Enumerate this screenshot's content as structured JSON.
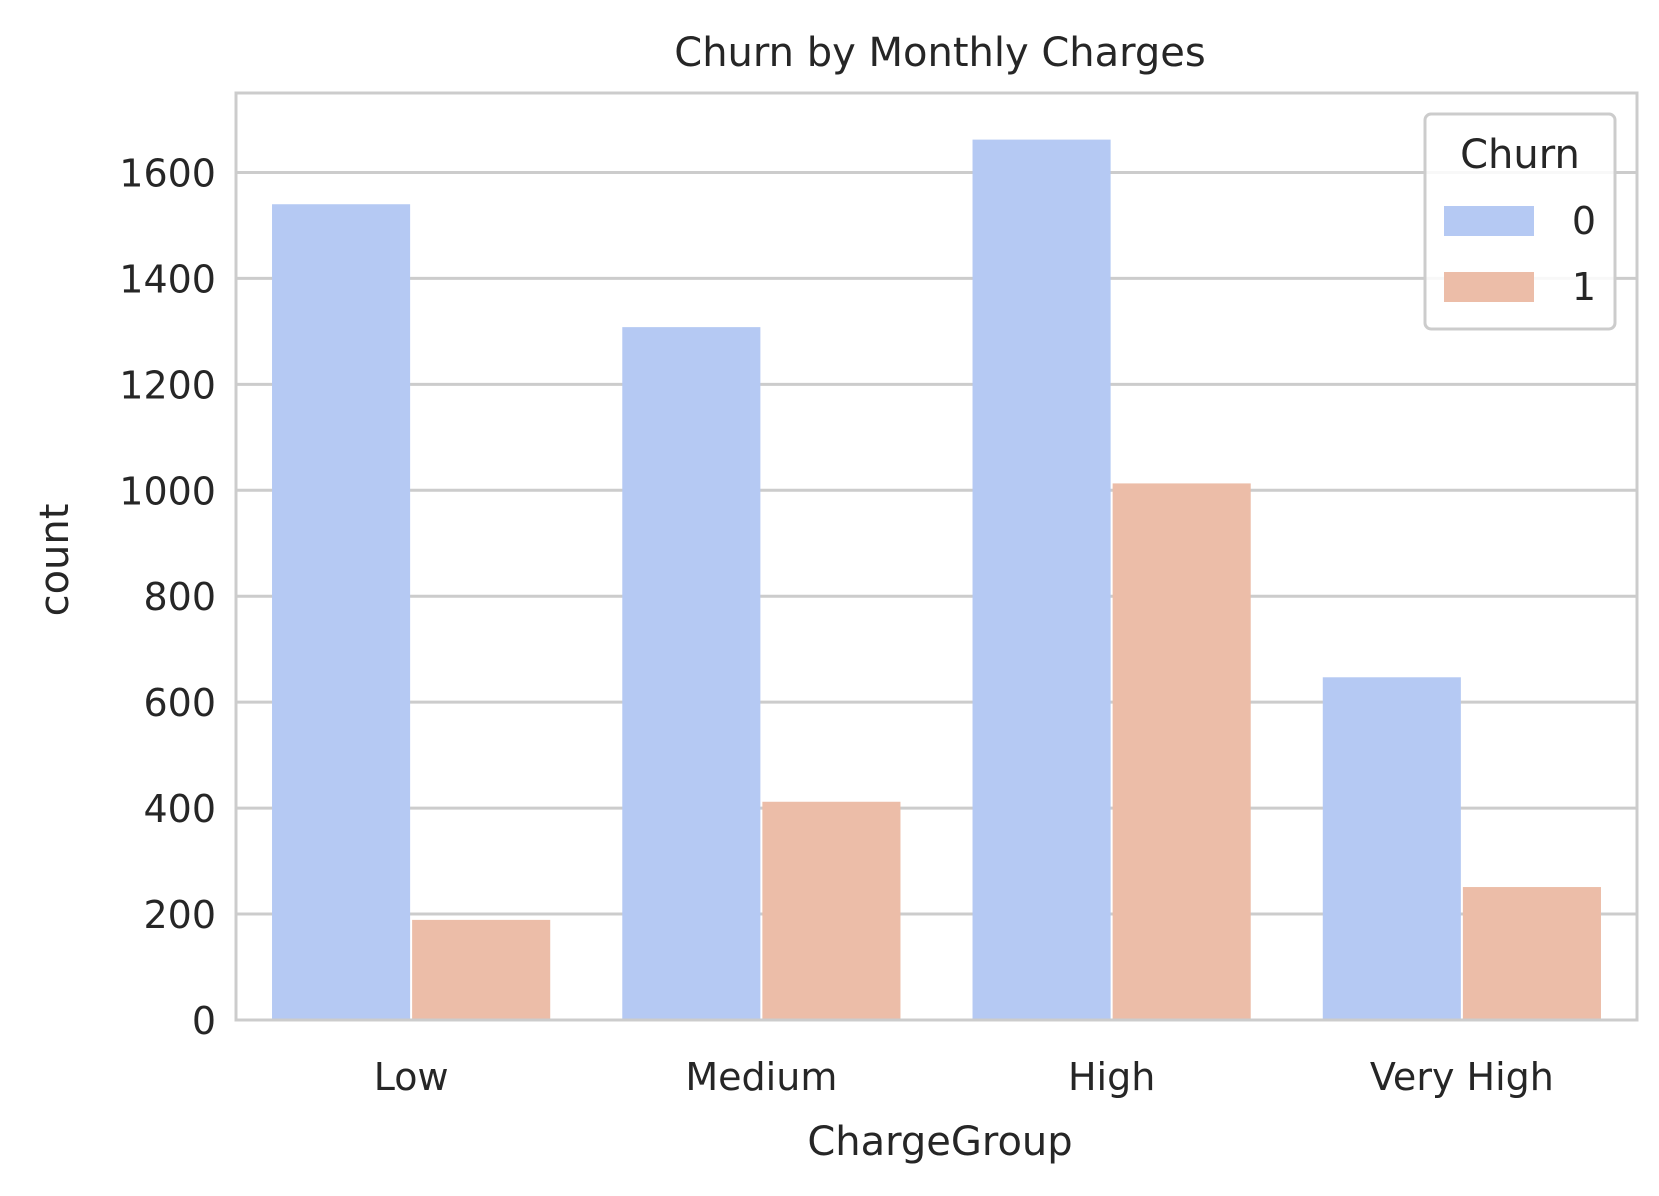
{
  "chart_data": {
    "type": "bar",
    "title": "Churn by Monthly Charges",
    "xlabel": "ChargeGroup",
    "ylabel": "count",
    "categories": [
      "Low",
      "Medium",
      "High",
      "Very High"
    ],
    "series": [
      {
        "name": "0",
        "values": [
          1540,
          1308,
          1662,
          647
        ],
        "color": "#b5c9f3"
      },
      {
        "name": "1",
        "values": [
          189,
          412,
          1013,
          251
        ],
        "color": "#ecbda8"
      }
    ],
    "ylim": [
      0,
      1750
    ],
    "yticks": [
      0,
      200,
      400,
      600,
      800,
      1000,
      1200,
      1400,
      1600
    ],
    "grid": true,
    "legend": {
      "title": "Churn",
      "placement": "top-right"
    },
    "colors": {
      "grid": "#cccccc",
      "frame": "#cccccc",
      "text": "#262626",
      "background": "#ffffff"
    }
  }
}
